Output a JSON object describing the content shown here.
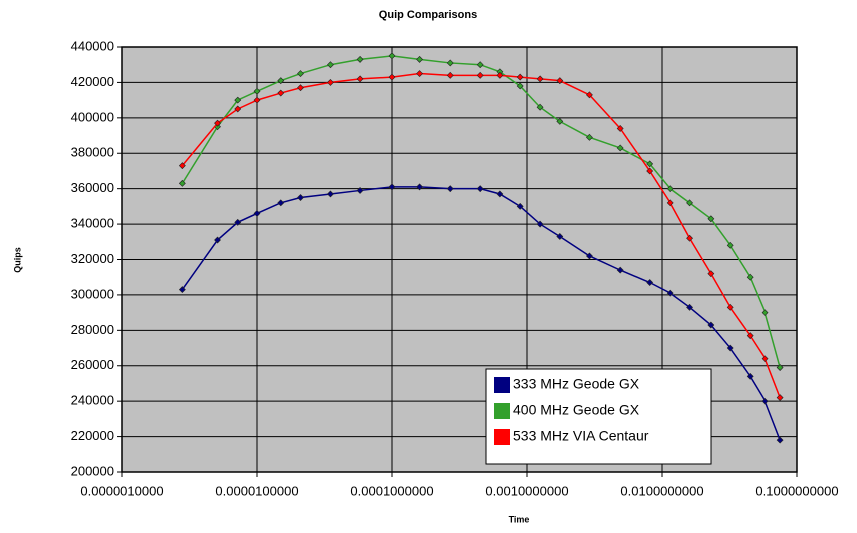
{
  "chart_data": {
    "type": "line",
    "title": "Quip Comparisons",
    "x_label": "Time",
    "y_label": "Quips",
    "x_scale": "log",
    "grid": true,
    "legend": "lower right",
    "x": [
      2.8e-06,
      5.1e-06,
      7.2e-06,
      1e-05,
      1.5e-05,
      2.1e-05,
      3.5e-05,
      5.8e-05,
      0.0001,
      0.00016,
      0.00027,
      0.00045,
      0.00063,
      0.00089,
      0.00125,
      0.00175,
      0.0029,
      0.0049,
      0.0081,
      0.0115,
      0.016,
      0.023,
      0.032,
      0.045,
      0.058,
      0.075
    ],
    "series": [
      {
        "name": "333 MHz Geode GX",
        "color": "#000080",
        "values": [
          303000,
          331000,
          341000,
          346000,
          352000,
          355000,
          357000,
          359000,
          361000,
          361000,
          360000,
          360000,
          357000,
          350000,
          340000,
          333000,
          322000,
          314000,
          307000,
          301000,
          293000,
          283000,
          270000,
          254000,
          240000,
          218000
        ]
      },
      {
        "name": "400 MHz Geode GX",
        "color": "#33a02c",
        "values": [
          363000,
          395000,
          410000,
          415000,
          421000,
          425000,
          430000,
          433000,
          435000,
          433000,
          431000,
          430000,
          426000,
          418000,
          406000,
          398000,
          389000,
          383000,
          374000,
          360000,
          352000,
          343000,
          328000,
          310000,
          290000,
          259000
        ]
      },
      {
        "name": "533 MHz VIA Centaur",
        "color": "#ff0000",
        "values": [
          373000,
          397000,
          405000,
          410000,
          414000,
          417000,
          420000,
          422000,
          423000,
          425000,
          424000,
          424000,
          424000,
          423000,
          422000,
          421000,
          413000,
          394000,
          370000,
          352000,
          332000,
          312000,
          293000,
          277000,
          264000,
          242000
        ]
      }
    ],
    "xlim": [
      1e-06,
      0.1
    ],
    "xticks": [
      {
        "value": 1e-06,
        "label": "0.0000010000"
      },
      {
        "value": 1e-05,
        "label": "0.0000100000"
      },
      {
        "value": 0.0001,
        "label": "0.0001000000"
      },
      {
        "value": 0.001,
        "label": "0.0010000000"
      },
      {
        "value": 0.01,
        "label": "0.0100000000"
      },
      {
        "value": 0.1,
        "label": "0.1000000000"
      }
    ],
    "ylim": [
      200000,
      440000
    ],
    "yticks": [
      200000,
      220000,
      240000,
      260000,
      280000,
      300000,
      320000,
      340000,
      360000,
      380000,
      400000,
      420000,
      440000
    ]
  }
}
